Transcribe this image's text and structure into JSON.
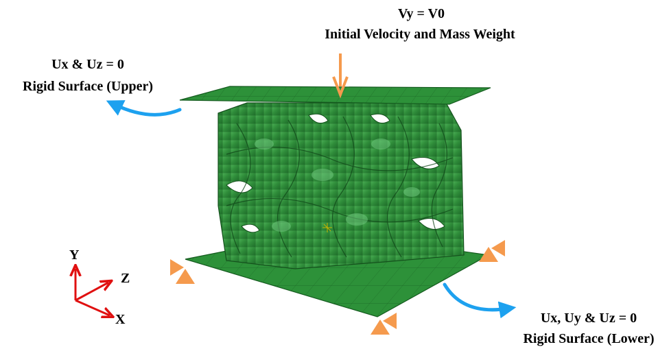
{
  "labels": {
    "top_line1": "Vy = V0",
    "top_line2": "Initial Velocity and Mass Weight",
    "upper_line1": "Ux & Uz = 0",
    "upper_line2": "Rigid Surface (Upper)",
    "lower_line1": "Ux, Uy & Uz = 0",
    "lower_line2": "Rigid Surface (Lower)"
  },
  "axes": {
    "y": "Y",
    "z": "Z",
    "x": "X"
  },
  "colors": {
    "plate": "#2c8f38",
    "plate_edge": "#145a1e",
    "mesh": "#3aaa48",
    "orange": "#f59a4d",
    "blue": "#1da1ef",
    "axis_red": "#e01010"
  }
}
